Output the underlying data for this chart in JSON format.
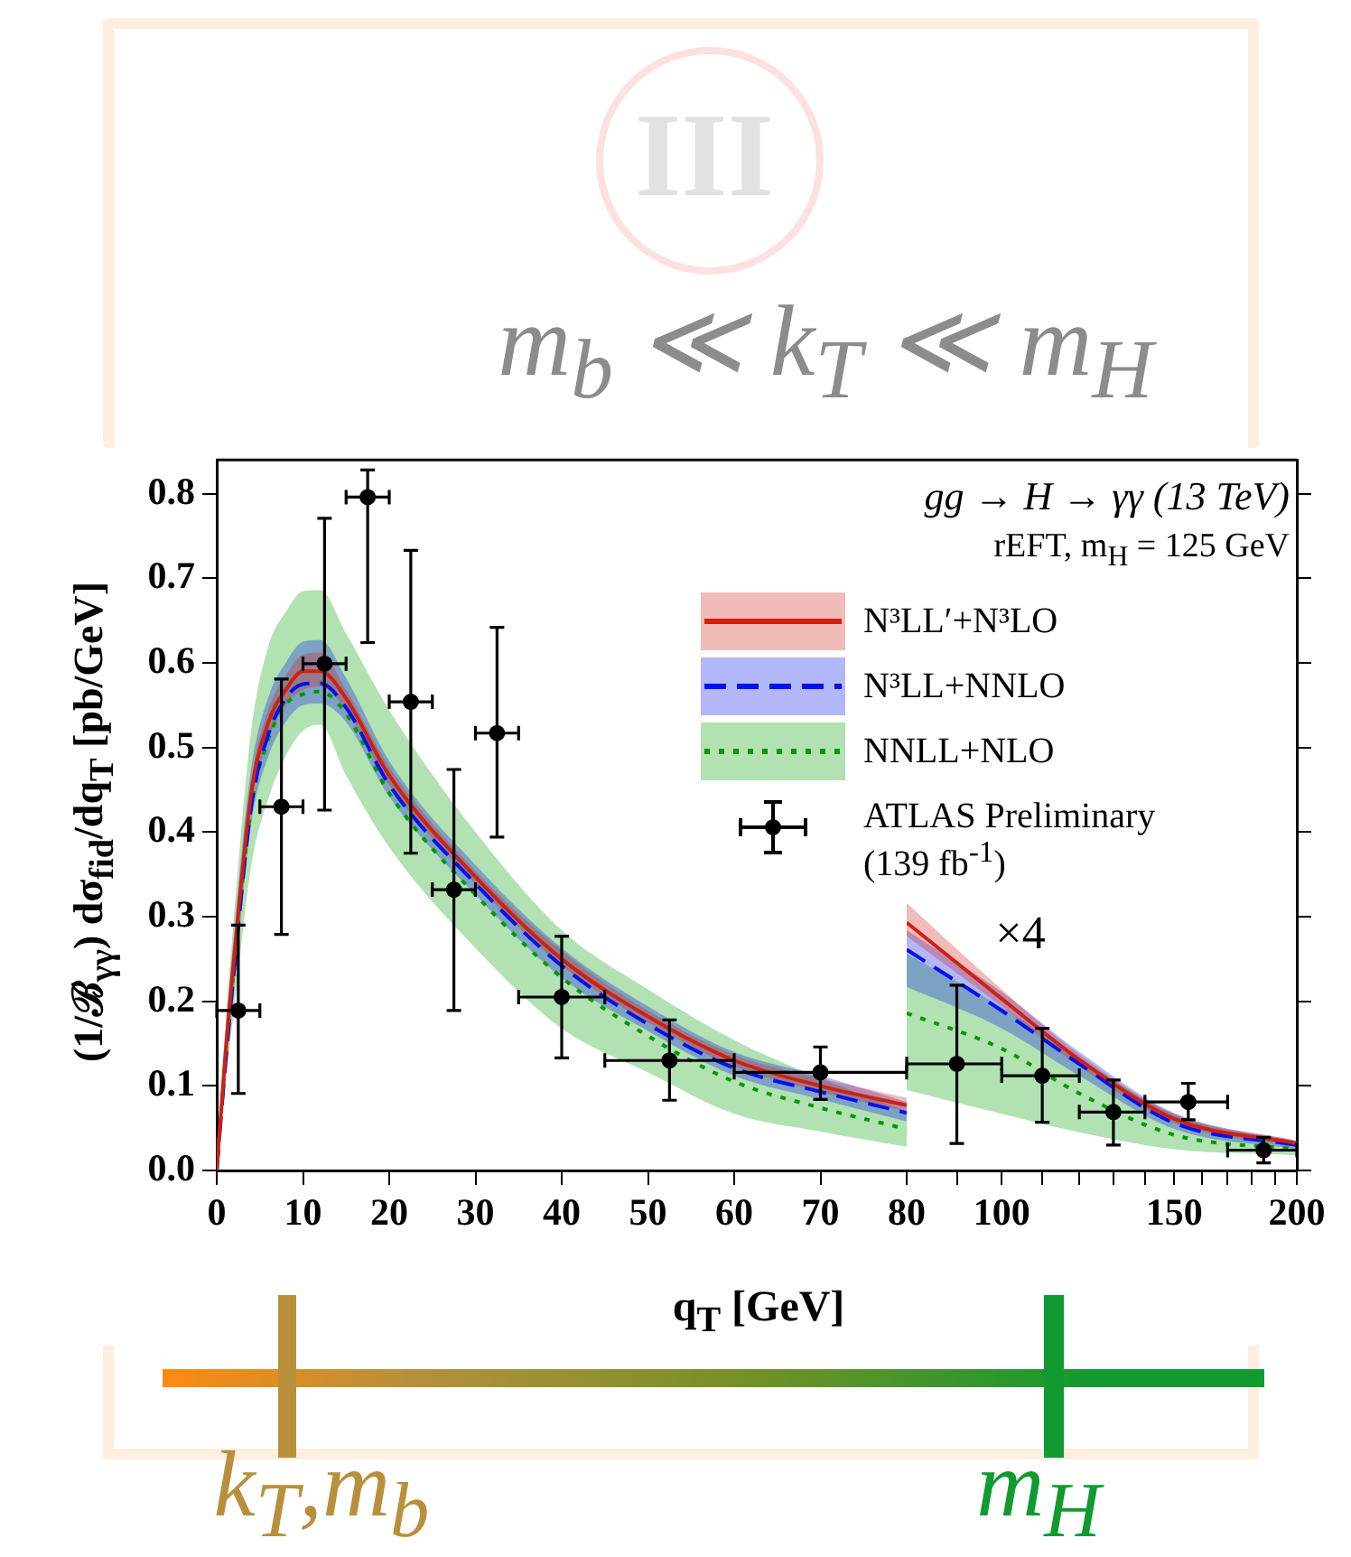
{
  "chart_data": [
    {
      "type": "line",
      "xlabel": "q$_{T}$ [GeV]",
      "ylabel": "(1/ℬ$_{γγ}$) dσ$_{fid}$/dq$_{T}$ [pb/GeV]",
      "xlim": [
        0,
        80
      ],
      "xticks": [
        0,
        10,
        20,
        30,
        40,
        50,
        60,
        70,
        80
      ],
      "ylim": [
        0,
        0.84
      ],
      "yticks": [
        {
          "value": 0,
          "label": "0.0"
        },
        {
          "value": 0.1,
          "label": "0.1"
        },
        {
          "value": 0.2,
          "label": "0.2"
        },
        {
          "value": 0.3,
          "label": "0.3"
        },
        {
          "value": 0.4,
          "label": "0.4"
        },
        {
          "value": 0.5,
          "label": "0.5"
        },
        {
          "value": 0.6,
          "label": "0.6"
        },
        {
          "value": 0.7,
          "label": "0.7"
        },
        {
          "value": 0.8,
          "label": "0.8"
        }
      ],
      "grid": false,
      "legend": "top right",
      "series": [
        {
          "name": "N³LL′+N³LO",
          "color": "#d02010",
          "line_style": "solid",
          "x": [
            0,
            1,
            2,
            4,
            6,
            8,
            10,
            12,
            15,
            20,
            30,
            40,
            50,
            60,
            70,
            80
          ],
          "values": [
            0,
            0.137,
            0.25,
            0.446,
            0.53,
            0.568,
            0.59,
            0.59,
            0.558,
            0.467,
            0.347,
            0.25,
            0.182,
            0.13,
            0.1,
            0.077
          ],
          "lower": [
            0,
            0.12,
            0.235,
            0.43,
            0.51,
            0.55,
            0.568,
            0.572,
            0.544,
            0.456,
            0.339,
            0.242,
            0.175,
            0.123,
            0.093,
            0.07
          ],
          "upper": [
            0,
            0.15,
            0.265,
            0.46,
            0.545,
            0.585,
            0.61,
            0.612,
            0.568,
            0.477,
            0.354,
            0.26,
            0.189,
            0.137,
            0.109,
            0.086
          ]
        },
        {
          "name": "N³LL+NNLO",
          "color": "#0011ee",
          "line_style": "dashed",
          "x": [
            0,
            1,
            2,
            4,
            6,
            8,
            10,
            12,
            15,
            20,
            30,
            40,
            50,
            60,
            70,
            80
          ],
          "values": [
            0,
            0.125,
            0.235,
            0.43,
            0.516,
            0.558,
            0.575,
            0.576,
            0.547,
            0.456,
            0.339,
            0.242,
            0.173,
            0.121,
            0.093,
            0.068
          ],
          "lower": [
            0,
            0.11,
            0.215,
            0.41,
            0.49,
            0.53,
            0.55,
            0.552,
            0.53,
            0.442,
            0.326,
            0.228,
            0.165,
            0.112,
            0.084,
            0.058
          ],
          "upper": [
            0,
            0.16,
            0.28,
            0.475,
            0.56,
            0.6,
            0.625,
            0.627,
            0.582,
            0.484,
            0.361,
            0.263,
            0.194,
            0.14,
            0.112,
            0.081
          ]
        },
        {
          "name": "NNLL+NLO",
          "color": "#009a00",
          "line_style": "dotted",
          "x": [
            0,
            1,
            2,
            4,
            6,
            8,
            10,
            12,
            15,
            20,
            30,
            40,
            50,
            60,
            70,
            80
          ],
          "values": [
            0,
            0.13,
            0.24,
            0.43,
            0.51,
            0.551,
            0.563,
            0.566,
            0.54,
            0.446,
            0.326,
            0.228,
            0.159,
            0.105,
            0.074,
            0.049
          ],
          "lower": [
            0,
            0.1,
            0.19,
            0.36,
            0.44,
            0.49,
            0.52,
            0.527,
            0.467,
            0.382,
            0.263,
            0.168,
            0.116,
            0.067,
            0.046,
            0.028
          ],
          "upper": [
            0,
            0.17,
            0.3,
            0.52,
            0.62,
            0.66,
            0.685,
            0.686,
            0.635,
            0.544,
            0.4,
            0.284,
            0.214,
            0.154,
            0.109,
            0.07
          ]
        },
        {
          "name": "ATLAS Preliminary (139 fb$^{-1}$)",
          "type": "scatter",
          "color": "#000000",
          "marker": "circle",
          "x": [
            2.5,
            7.5,
            12.5,
            17.5,
            22.5,
            27.5,
            32.5,
            40,
            52.5,
            70
          ],
          "values": [
            0.189,
            0.43,
            0.599,
            0.796,
            0.554,
            0.332,
            0.517,
            0.205,
            0.13,
            0.116
          ],
          "errors": [
            [
              0.091,
              0.29
            ],
            [
              0.279,
              0.581
            ],
            [
              0.426,
              0.771
            ],
            [
              0.624,
              0.828
            ],
            [
              0.375,
              0.733
            ],
            [
              0.189,
              0.474
            ],
            [
              0.394,
              0.642
            ],
            [
              0.133,
              0.277
            ],
            [
              0.083,
              0.178
            ],
            [
              0.084,
              0.146
            ]
          ],
          "xerrors": [
            2.5,
            2.5,
            2.5,
            2.5,
            2.5,
            2.5,
            2.5,
            5,
            7.5,
            10
          ]
        }
      ],
      "annotations": [
        "III",
        "m$_{b}$ ≪ k$_{T}$ ≪ m$_{H}$",
        "k$_{T}$,m$_{b}$",
        "m$_{H}$"
      ]
    },
    {
      "type": "line",
      "title": "gg → H → γγ (13 TeV)",
      "subtitle": "rEFT, m$_{H}$ = 125 GeV",
      "log": "x",
      "xlim": [
        80,
        200
      ],
      "xticks": [
        {
          "value": 90,
          "label": null
        },
        100,
        {
          "value": 110,
          "label": null
        },
        {
          "value": 120,
          "label": null
        },
        {
          "value": 130,
          "label": null
        },
        {
          "value": 140,
          "label": null
        },
        150,
        {
          "value": 160,
          "label": null
        },
        {
          "value": 170,
          "label": null
        },
        {
          "value": 180,
          "label": null
        },
        {
          "value": 190,
          "label": null
        },
        200
      ],
      "ylim": [
        0,
        0.84
      ],
      "yticks": [
        {
          "value": 0,
          "label": null
        },
        {
          "value": 0.1,
          "label": null
        },
        {
          "value": 0.2,
          "label": null
        },
        {
          "value": 0.3,
          "label": null
        },
        {
          "value": 0.4,
          "label": null
        },
        {
          "value": 0.5,
          "label": null
        },
        {
          "value": 0.6,
          "label": null
        },
        {
          "value": 0.7,
          "label": null
        },
        {
          "value": 0.8,
          "label": null
        }
      ],
      "tick_labels": "x",
      "grid": false,
      "series": [
        {
          "color": "#d02010",
          "line_style": "solid",
          "x": [
            80,
            100,
            120,
            150,
            200
          ],
          "values": [
            0.293,
            0.203,
            0.131,
            0.061,
            0.032
          ],
          "lower": [
            0.277,
            0.194,
            0.123,
            0.056,
            0.028
          ],
          "upper": [
            0.316,
            0.214,
            0.137,
            0.067,
            0.035
          ]
        },
        {
          "color": "#0011ee",
          "line_style": "dashed",
          "x": [
            80,
            100,
            120,
            150,
            200
          ],
          "values": [
            0.261,
            0.189,
            0.126,
            0.056,
            0.03
          ],
          "lower": [
            0.217,
            0.168,
            0.112,
            0.049,
            0.025
          ],
          "upper": [
            0.284,
            0.211,
            0.14,
            0.068,
            0.035
          ]
        },
        {
          "color": "#009a00",
          "line_style": "dotted",
          "x": [
            80,
            100,
            120,
            150,
            200
          ],
          "values": [
            0.186,
            0.144,
            0.091,
            0.042,
            0.025
          ],
          "lower": [
            0.095,
            0.067,
            0.045,
            0.025,
            0.018
          ],
          "upper": [
            0.256,
            0.193,
            0.133,
            0.066,
            0.033
          ]
        },
        {
          "type": "scatter",
          "color": "#000000",
          "marker": "circle",
          "x": [
            90,
            110,
            130,
            155,
            185
          ],
          "values": [
            0.126,
            0.112,
            0.069,
            0.081,
            0.024
          ],
          "errors": [
            [
              0.032,
              0.219
            ],
            [
              0.057,
              0.168
            ],
            [
              0.03,
              0.107
            ],
            [
              0.06,
              0.103
            ],
            [
              0.009,
              0.039
            ]
          ],
          "xerrors": [
            [
              80,
              100
            ],
            [
              100,
              120
            ],
            [
              120,
              140
            ],
            [
              140,
              170
            ],
            [
              170,
              200
            ]
          ]
        }
      ],
      "annotations": [
        "×4"
      ]
    }
  ]
}
